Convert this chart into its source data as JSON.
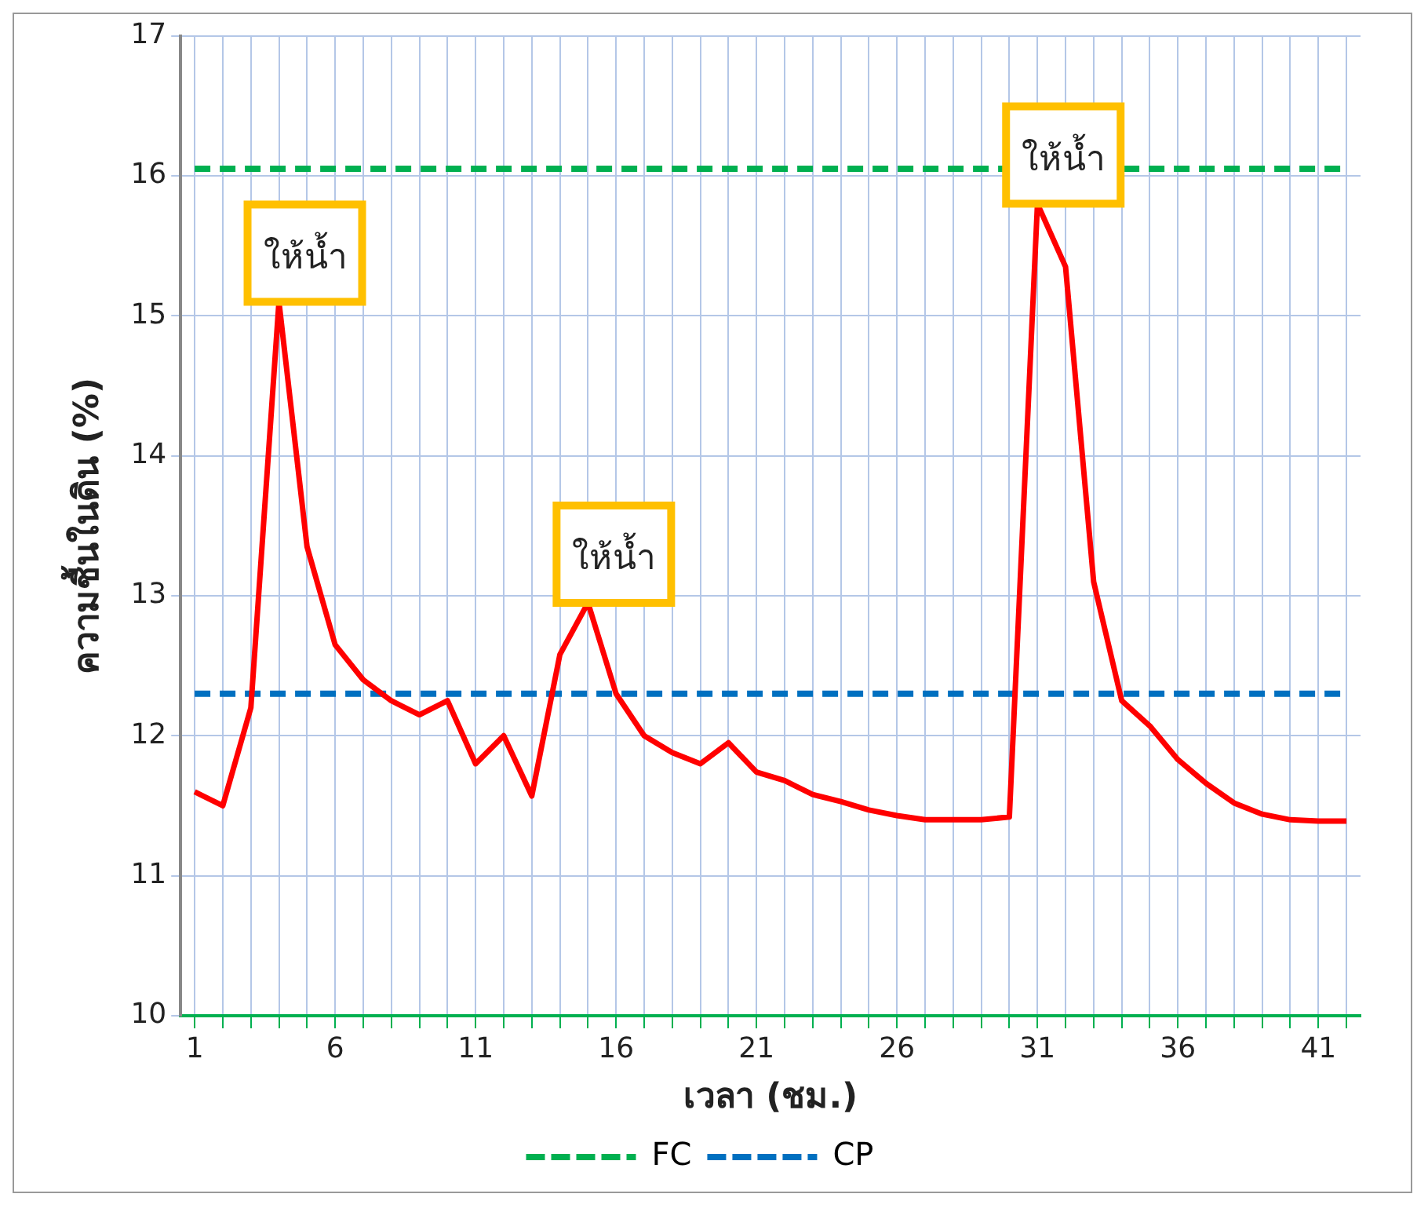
{
  "chart_data": {
    "type": "line",
    "xlabel": "เวลา (ชม.)",
    "ylabel": "ความชื้นในดิน (%)",
    "x": [
      1,
      2,
      3,
      4,
      5,
      6,
      7,
      8,
      9,
      10,
      11,
      12,
      13,
      14,
      15,
      16,
      17,
      18,
      19,
      20,
      21,
      22,
      23,
      24,
      25,
      26,
      27,
      28,
      29,
      30,
      31,
      32,
      33,
      34,
      35,
      36,
      37,
      38,
      39,
      40,
      41,
      42
    ],
    "series": [
      {
        "color": "#ff0000",
        "values": [
          11.6,
          11.5,
          12.2,
          15.1,
          13.35,
          12.65,
          12.4,
          12.25,
          12.15,
          12.25,
          11.8,
          12.0,
          11.57,
          12.58,
          12.95,
          12.3,
          12.0,
          11.88,
          11.8,
          11.95,
          11.74,
          11.68,
          11.58,
          11.53,
          11.47,
          11.43,
          11.4,
          11.4,
          11.4,
          11.42,
          15.8,
          15.35,
          13.1,
          12.25,
          12.07,
          11.83,
          11.66,
          11.52,
          11.44,
          11.4,
          11.39,
          11.39
        ]
      }
    ],
    "xlim": [
      0.5,
      42.5
    ],
    "xticks": [
      1,
      {
        "value": 2,
        "label": null
      },
      {
        "value": 3,
        "label": null
      },
      {
        "value": 4,
        "label": null
      },
      {
        "value": 5,
        "label": null
      },
      6,
      {
        "value": 7,
        "label": null
      },
      {
        "value": 8,
        "label": null
      },
      {
        "value": 9,
        "label": null
      },
      {
        "value": 10,
        "label": null
      },
      11,
      {
        "value": 12,
        "label": null
      },
      {
        "value": 13,
        "label": null
      },
      {
        "value": 14,
        "label": null
      },
      {
        "value": 15,
        "label": null
      },
      16,
      {
        "value": 17,
        "label": null
      },
      {
        "value": 18,
        "label": null
      },
      {
        "value": 19,
        "label": null
      },
      {
        "value": 20,
        "label": null
      },
      21,
      {
        "value": 22,
        "label": null
      },
      {
        "value": 23,
        "label": null
      },
      {
        "value": 24,
        "label": null
      },
      {
        "value": 25,
        "label": null
      },
      26,
      {
        "value": 27,
        "label": null
      },
      {
        "value": 28,
        "label": null
      },
      {
        "value": 29,
        "label": null
      },
      {
        "value": 30,
        "label": null
      },
      31,
      {
        "value": 32,
        "label": null
      },
      {
        "value": 33,
        "label": null
      },
      {
        "value": 34,
        "label": null
      },
      {
        "value": 35,
        "label": null
      },
      36,
      {
        "value": 37,
        "label": null
      },
      {
        "value": 38,
        "label": null
      },
      {
        "value": 39,
        "label": null
      },
      {
        "value": 40,
        "label": null
      },
      41,
      {
        "value": 42,
        "label": null
      }
    ],
    "ylim": [
      10,
      17
    ],
    "yticks": [
      10,
      11,
      12,
      13,
      14,
      15,
      16,
      17
    ],
    "ref_lines": [
      {
        "axis": "y",
        "value": 16.05,
        "label": "FC",
        "color": "#00b050",
        "line_style": "dashed"
      },
      {
        "axis": "y",
        "value": 12.3,
        "label": "CP",
        "color": "#0070c0",
        "line_style": "dashed"
      }
    ],
    "annotations": [
      {
        "text": "ให้น้ำ",
        "x": 4,
        "y": 15.1
      },
      {
        "text": "ให้น้ำ",
        "x": 15,
        "y": 12.95
      },
      {
        "text": "ให้น้ำ",
        "x": 31,
        "y": 15.8
      }
    ],
    "grid": true,
    "legend": "bottom",
    "marker": "none",
    "line_style": "solid"
  }
}
